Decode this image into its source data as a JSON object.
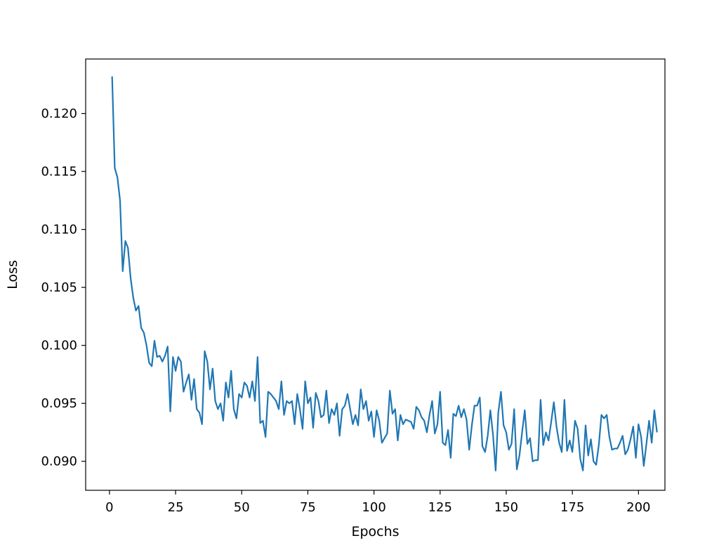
{
  "chart_data": {
    "type": "line",
    "title": "",
    "xlabel": "Epochs",
    "ylabel": "Loss",
    "xlim": [
      -9,
      210
    ],
    "ylim": [
      0.0875,
      0.1247
    ],
    "xticks": [
      0,
      25,
      50,
      75,
      100,
      125,
      150,
      175,
      200
    ],
    "xtick_labels": [
      "0",
      "25",
      "50",
      "75",
      "100",
      "125",
      "150",
      "175",
      "200"
    ],
    "yticks": [
      0.09,
      0.095,
      0.1,
      0.105,
      0.11,
      0.115,
      0.12
    ],
    "ytick_labels": [
      "0.090",
      "0.095",
      "0.100",
      "0.105",
      "0.110",
      "0.115",
      "0.120"
    ],
    "grid": false,
    "colors": {
      "series": "#1f77b4",
      "axes": "#000000",
      "background": "#ffffff"
    },
    "series": [
      {
        "x_start": 1,
        "x_step": 1,
        "values": [
          0.1232,
          0.1153,
          0.1145,
          0.1125,
          0.1064,
          0.109,
          0.1084,
          0.1058,
          0.1041,
          0.103,
          0.1034,
          0.1015,
          0.1011,
          0.1,
          0.0985,
          0.0982,
          0.1004,
          0.099,
          0.0991,
          0.0986,
          0.0991,
          0.0999,
          0.0943,
          0.099,
          0.0978,
          0.099,
          0.0986,
          0.096,
          0.0968,
          0.0975,
          0.0953,
          0.0971,
          0.0945,
          0.0942,
          0.0932,
          0.0995,
          0.0986,
          0.0962,
          0.098,
          0.0952,
          0.0945,
          0.095,
          0.0935,
          0.0968,
          0.0955,
          0.0978,
          0.0945,
          0.0937,
          0.0958,
          0.0955,
          0.0968,
          0.0965,
          0.0955,
          0.0969,
          0.0952,
          0.099,
          0.0933,
          0.0935,
          0.0921,
          0.096,
          0.0958,
          0.0955,
          0.0952,
          0.0945,
          0.0969,
          0.094,
          0.0952,
          0.095,
          0.0952,
          0.0932,
          0.0958,
          0.0945,
          0.0928,
          0.0969,
          0.095,
          0.0955,
          0.0929,
          0.0959,
          0.0952,
          0.0938,
          0.094,
          0.0961,
          0.0933,
          0.0945,
          0.094,
          0.095,
          0.0922,
          0.0945,
          0.0948,
          0.0958,
          0.0945,
          0.0932,
          0.094,
          0.0931,
          0.0962,
          0.0945,
          0.0952,
          0.0935,
          0.0943,
          0.0921,
          0.0944,
          0.0935,
          0.0916,
          0.092,
          0.0924,
          0.0961,
          0.0941,
          0.0945,
          0.0918,
          0.094,
          0.0932,
          0.0936,
          0.0935,
          0.0934,
          0.0928,
          0.0947,
          0.0944,
          0.0938,
          0.0935,
          0.0925,
          0.094,
          0.0952,
          0.0924,
          0.0932,
          0.096,
          0.0916,
          0.0914,
          0.0927,
          0.0903,
          0.0941,
          0.0939,
          0.0948,
          0.0938,
          0.0945,
          0.0936,
          0.091,
          0.0931,
          0.0948,
          0.0948,
          0.0955,
          0.0913,
          0.0908,
          0.0922,
          0.0944,
          0.0923,
          0.0892,
          0.0942,
          0.096,
          0.0931,
          0.0925,
          0.091,
          0.0915,
          0.0945,
          0.0893,
          0.0905,
          0.0925,
          0.0944,
          0.0915,
          0.092,
          0.09,
          0.0901,
          0.0901,
          0.0953,
          0.0914,
          0.0925,
          0.0918,
          0.0934,
          0.0951,
          0.093,
          0.0916,
          0.0908,
          0.0953,
          0.0909,
          0.0918,
          0.0908,
          0.0935,
          0.0928,
          0.0902,
          0.0892,
          0.0931,
          0.0905,
          0.0919,
          0.09,
          0.0897,
          0.0914,
          0.094,
          0.0937,
          0.094,
          0.0921,
          0.091,
          0.0911,
          0.0911,
          0.0916,
          0.0922,
          0.0906,
          0.091,
          0.0919,
          0.093,
          0.0903,
          0.0932,
          0.0921,
          0.0896,
          0.0915,
          0.0935,
          0.0916,
          0.0944,
          0.0925
        ]
      }
    ]
  }
}
